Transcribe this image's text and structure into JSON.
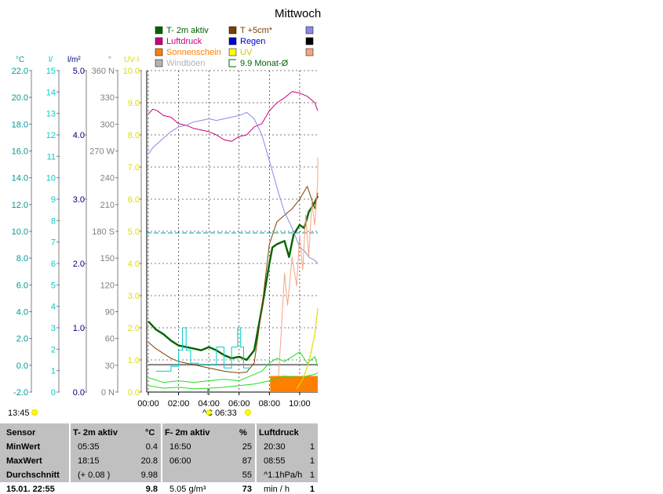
{
  "title": "Mittwoch",
  "legend": [
    {
      "label": "T- 2m aktiv",
      "color": "#006400",
      "kind": "box"
    },
    {
      "label": "T +5cm*",
      "color": "#7b3f00",
      "kind": "box"
    },
    {
      "label": "",
      "color": "#8a8ae8",
      "kind": "box"
    },
    {
      "label": "Luftdruck",
      "color": "#c8007a",
      "kind": "box"
    },
    {
      "label": "Regen",
      "color": "#0000cc",
      "kind": "box"
    },
    {
      "label": "",
      "color": "#000000",
      "kind": "box"
    },
    {
      "label": "Sonnenschein",
      "color": "#ff7f00",
      "kind": "box"
    },
    {
      "label": "UV",
      "color": "#ffff00",
      "kind": "box"
    },
    {
      "label": "",
      "color": "#f4a582",
      "kind": "box"
    },
    {
      "label": "Windböen",
      "color": "#b4b4b4",
      "kind": "box"
    },
    {
      "label": "9.9 Monat-Ø",
      "color": "#006400",
      "kind": "bracket"
    }
  ],
  "colors": {
    "temp": "#009999",
    "rain": "#00cccc",
    "rad": "#000080",
    "dir": "#808080",
    "uv": "#dddd00",
    "grid": "#000000"
  },
  "chart_data": {
    "type": "line",
    "x_ticks": [
      "00:00",
      "02:00",
      "04:00",
      "06:00",
      "08:00",
      "10:00"
    ],
    "xlim_hours": [
      0,
      11.3
    ],
    "axes": [
      {
        "unit": "°C",
        "ticks": [
          "22.0",
          "20.0",
          "18.0",
          "16.0",
          "14.0",
          "12.0",
          "10.0",
          "8.0",
          "6.0",
          "4.0",
          "2.0",
          "0.0",
          "-2.0"
        ],
        "color": "#009999"
      },
      {
        "unit": "l/",
        "ticks": [
          "15",
          "14",
          "13",
          "12",
          "11",
          "10",
          "9",
          "8",
          "7",
          "6",
          "5",
          "4",
          "3",
          "2",
          "1",
          "0"
        ],
        "color": "#00cccc"
      },
      {
        "unit": "l/m²",
        "ticks": [
          "5.0",
          "4.0",
          "3.0",
          "2.0",
          "1.0",
          "0.0"
        ],
        "color": "#000080"
      },
      {
        "unit": "°",
        "ticks": [
          "360 N",
          "330",
          "300",
          "270 W",
          "240",
          "210",
          "180 S",
          "150",
          "120",
          "90",
          "60",
          "30",
          "0 N"
        ],
        "color": "#808080"
      },
      {
        "unit": "UV-I",
        "ticks": [
          "10.0",
          "9.0",
          "8.0",
          "7.0",
          "6.0",
          "5.0",
          "4.0",
          "3.0",
          "2.0",
          "1.0",
          "0.0"
        ],
        "color": "#dddd00"
      }
    ],
    "ylim_uv": [
      0,
      10
    ],
    "monthly_avg_uv": 4.95,
    "series": [
      {
        "name": "T- 2m aktiv",
        "color": "#006400",
        "width": 2.4,
        "x": [
          0,
          0.5,
          1,
          1.5,
          2,
          2.5,
          3,
          3.5,
          4,
          4.5,
          5,
          5.5,
          6,
          6.5,
          7,
          7.5,
          8,
          8.2,
          8.5,
          9,
          9.3,
          9.6,
          10,
          10.3,
          10.6,
          11,
          11.3
        ],
        "y": [
          2.2,
          1.95,
          1.8,
          1.6,
          1.45,
          1.4,
          1.35,
          1.3,
          1.4,
          1.3,
          1.15,
          1.05,
          1.1,
          1.0,
          1.3,
          2.6,
          4.0,
          4.5,
          4.6,
          4.7,
          4.2,
          4.9,
          5.2,
          5.1,
          5.6,
          5.9,
          6.1
        ]
      },
      {
        "name": "T +5cm*",
        "color": "#7b3f00",
        "width": 1,
        "x": [
          0,
          0.5,
          1,
          1.5,
          2,
          2.5,
          3,
          3.5,
          4,
          4.5,
          5,
          5.5,
          6,
          6.5,
          7,
          7.5,
          8,
          8.5,
          9,
          9.5,
          10,
          10.5,
          11,
          11.3
        ],
        "y": [
          1.55,
          1.35,
          1.2,
          1.05,
          0.95,
          0.9,
          0.85,
          0.8,
          0.75,
          0.7,
          0.65,
          0.62,
          0.6,
          0.62,
          0.9,
          2.6,
          4.6,
          5.3,
          5.5,
          5.7,
          6.0,
          6.4,
          5.7,
          6.2
        ]
      },
      {
        "name": "Luftdruck",
        "color": "#c8007a",
        "width": 1,
        "x": [
          0,
          0.3,
          0.6,
          1,
          1.5,
          2,
          2.5,
          3,
          3.5,
          4,
          4.5,
          5,
          5.5,
          6,
          6.5,
          7,
          7.5,
          8,
          8.5,
          9,
          9.5,
          10,
          10.5,
          11,
          11.3
        ],
        "y": [
          8.65,
          8.8,
          8.75,
          8.6,
          8.55,
          8.35,
          8.3,
          8.2,
          8.15,
          8.1,
          8.0,
          7.85,
          7.8,
          7.95,
          8.0,
          8.25,
          8.35,
          8.75,
          9.0,
          9.15,
          9.35,
          9.3,
          9.2,
          9.0,
          8.75
        ]
      },
      {
        "name": "",
        "color": "#8a8ae8",
        "width": 1,
        "x": [
          0,
          0.3,
          1,
          1.5,
          2,
          2.5,
          3,
          3.5,
          4,
          4.5,
          5,
          5.5,
          6,
          6.5,
          7,
          7.5,
          8,
          8.3,
          8.6,
          9,
          9.3,
          9.6,
          10,
          10.3,
          10.6,
          11,
          11.3
        ],
        "y": [
          7.4,
          7.6,
          7.9,
          8.1,
          8.25,
          8.3,
          8.4,
          8.45,
          8.5,
          8.45,
          8.5,
          8.55,
          8.6,
          8.7,
          8.5,
          8.0,
          7.2,
          6.7,
          6.2,
          5.6,
          5.3,
          5.0,
          4.5,
          4.4,
          4.2,
          4.1,
          4.0
        ]
      },
      {
        "name": "",
        "color": "#f4a582",
        "width": 1,
        "x": [
          8.6,
          8.8,
          9,
          9.2,
          9.5,
          9.8,
          10,
          10.2,
          10.4,
          10.6,
          10.8,
          11,
          11.2,
          11.3
        ],
        "y": [
          0.5,
          2.0,
          3.7,
          2.7,
          4.2,
          3.3,
          4.9,
          3.8,
          5.5,
          4.2,
          5.9,
          5.2,
          6.6,
          7.3
        ]
      },
      {
        "name": "",
        "color": "#00cccc",
        "width": 1,
        "x": [
          0.5,
          1.5,
          1.5,
          2,
          2,
          2.25,
          2.25,
          2.5,
          2.5,
          2.8,
          2.8,
          3.3,
          3.3,
          4.5,
          4.5,
          5,
          5,
          5.5,
          5.5,
          5.9,
          5.9,
          6.1,
          6.1,
          6.3,
          6.3,
          6.7
        ],
        "y": [
          0.65,
          0.65,
          0.8,
          0.8,
          1.3,
          1.3,
          2.0,
          2.0,
          1.3,
          1.3,
          0.9,
          0.9,
          0.85,
          0.85,
          1.4,
          1.4,
          0.75,
          0.75,
          1.4,
          1.4,
          2.0,
          2.0,
          1.4,
          1.4,
          0.75,
          0.75
        ]
      },
      {
        "name": "",
        "color": "#22dd22",
        "width": 1,
        "x": [
          0,
          1,
          2,
          3,
          4,
          5,
          6,
          7,
          7.5,
          8,
          8.5,
          9,
          9.5,
          10,
          10.5,
          11,
          11.3
        ],
        "y": [
          0.45,
          0.3,
          0.35,
          0.3,
          0.35,
          0.4,
          0.35,
          0.55,
          0.65,
          0.9,
          1.05,
          0.95,
          1.1,
          1.25,
          0.9,
          1.1,
          0.8
        ]
      },
      {
        "name": "",
        "color": "#22dd22",
        "width": 1,
        "x": [
          0,
          1,
          2,
          3,
          4,
          5,
          6,
          7,
          8,
          9,
          10,
          11,
          11.3
        ],
        "y": [
          0.2,
          0.12,
          0.15,
          0.1,
          0.12,
          0.15,
          0.2,
          0.25,
          0.35,
          0.5,
          0.45,
          0.55,
          0.6
        ]
      },
      {
        "name": "UV",
        "color": "#dddd00",
        "width": 1.2,
        "x": [
          9.8,
          10.2,
          10.6,
          11,
          11.3
        ],
        "y": [
          0.1,
          0.4,
          0.9,
          1.8,
          2.6
        ]
      }
    ],
    "sunshine": [
      {
        "from": 8.05,
        "to": 11.3,
        "level": 0.5
      }
    ],
    "gray_band": {
      "from": 0,
      "to": 11.3,
      "level": 0.85
    }
  },
  "time_left": "13:45",
  "sun_info": "^C 06:33",
  "stats": {
    "columns": [
      {
        "header": "Sensor",
        "header2": "",
        "rows": [
          "MinWert",
          "MaxWert",
          "Durchschnitt",
          "15.01. 22:55"
        ],
        "x": 8,
        "w": 85
      },
      {
        "header": "T- 2m aktiv",
        "header2": "°C",
        "rows": [
          "05:35",
          "18:15",
          "(+ 0.08 )",
          ""
        ],
        "values": [
          "0.4",
          "20.8",
          "9.98",
          "9.8"
        ],
        "x": 93,
        "w": 112
      },
      {
        "header": "F- 2m aktiv",
        "header2": "%",
        "rows": [
          "16:50",
          "06:00",
          "",
          "5.05 g/m³"
        ],
        "values": [
          "25",
          "87",
          "55",
          "73"
        ],
        "x": 210,
        "w": 115
      },
      {
        "header": "Luftdruck",
        "header2": "",
        "rows": [
          "20:30",
          "08:55",
          "^1.1hPa/h",
          "min / h"
        ],
        "values": [
          "1",
          "1",
          "1",
          "1"
        ],
        "x": 330,
        "w": 75
      }
    ]
  }
}
